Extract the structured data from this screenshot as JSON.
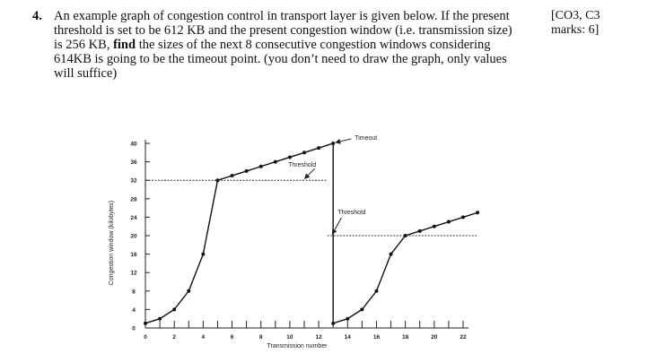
{
  "question": {
    "number": "4.",
    "lines": [
      "An example graph of congestion control in transport layer is given below. If the present",
      "threshold is set to be 612 KB and the present congestion window (i.e. transmission size)",
      "is 256 KB, ",
      "find",
      " the sizes of the next 8 consecutive congestion windows considering",
      "614KB is going to be the timeout point. (you don’t need to draw the graph, only values",
      "will suffice)"
    ]
  },
  "marks": {
    "line1": "[CO3, C3",
    "line2": "marks: 6]"
  },
  "chart_data": {
    "type": "line",
    "xlabel": "Transmission number",
    "ylabel": "Congestion window (kilobytes)",
    "x_ticks": [
      "0",
      "2",
      "4",
      "6",
      "8",
      "10",
      "12",
      "14",
      "16",
      "18",
      "20",
      "22"
    ],
    "y_ticks": [
      "0",
      "4",
      "8",
      "12",
      "16",
      "20",
      "24",
      "28",
      "32",
      "36",
      "40"
    ],
    "xlim": [
      0,
      22
    ],
    "ylim": [
      0,
      40
    ],
    "series": [
      {
        "x": [
          0,
          1,
          2,
          3,
          4,
          5,
          6,
          7,
          8,
          9,
          10,
          11,
          12,
          13,
          13,
          14,
          15,
          16,
          17,
          18,
          19,
          20,
          21,
          22,
          23
        ],
        "y": [
          1,
          2,
          4,
          8,
          16,
          32,
          33,
          34,
          35,
          36,
          37,
          38,
          39,
          40,
          1,
          2,
          4,
          8,
          16,
          20,
          21,
          22,
          23,
          24,
          25
        ]
      }
    ],
    "thresholds": [
      {
        "x": [
          0,
          12.6
        ],
        "y": 32
      },
      {
        "x": [
          12.6,
          23
        ],
        "y": 20
      }
    ],
    "annotations": [
      {
        "text": "Timeout",
        "x": 13,
        "y": 40
      },
      {
        "text": "Threshold",
        "x": 11.6,
        "y": 32
      },
      {
        "text": "Threshold",
        "x": 13.2,
        "y": 20
      }
    ]
  }
}
